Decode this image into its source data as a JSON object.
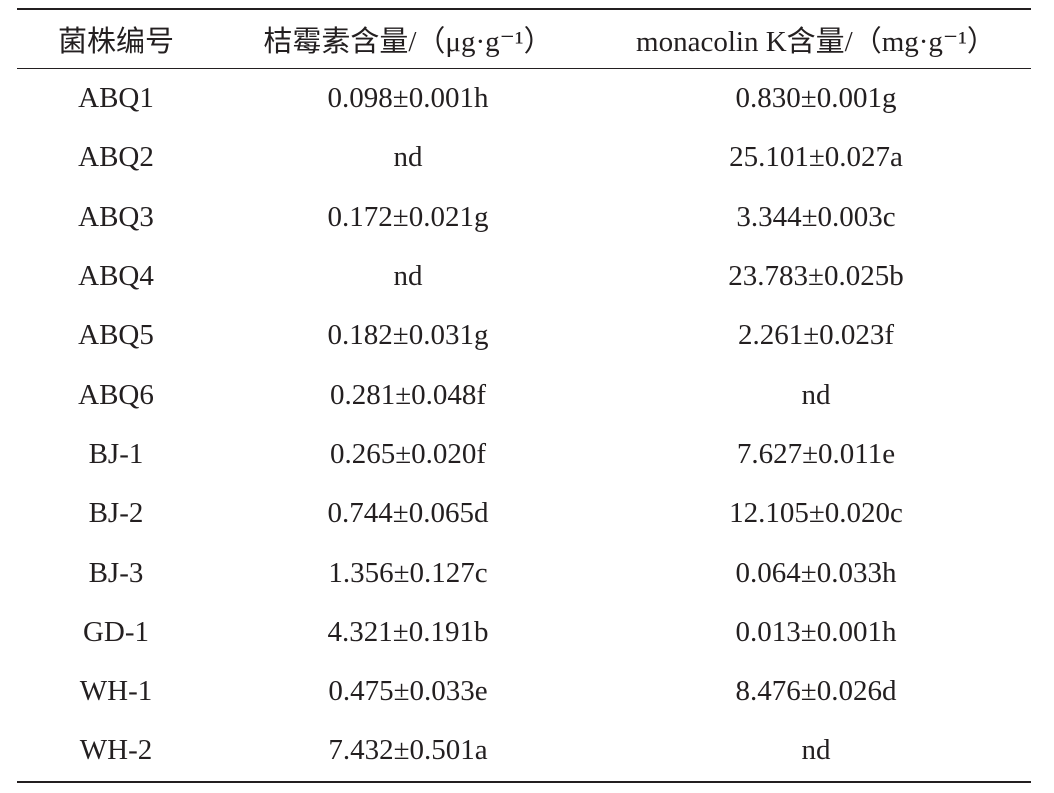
{
  "table": {
    "headers": [
      "菌株编号",
      "桔霉素含量/（μg·g⁻¹）",
      "monacolin K含量/（mg·g⁻¹）"
    ],
    "rows": [
      [
        "ABQ1",
        "0.098±0.001h",
        "0.830±0.001g"
      ],
      [
        "ABQ2",
        "nd",
        "25.101±0.027a"
      ],
      [
        "ABQ3",
        "0.172±0.021g",
        "3.344±0.003c"
      ],
      [
        "ABQ4",
        "nd",
        "23.783±0.025b"
      ],
      [
        "ABQ5",
        "0.182±0.031g",
        "2.261±0.023f"
      ],
      [
        "ABQ6",
        "0.281±0.048f",
        "nd"
      ],
      [
        "BJ-1",
        "0.265±0.020f",
        "7.627±0.011e"
      ],
      [
        "BJ-2",
        "0.744±0.065d",
        "12.105±0.020c"
      ],
      [
        "BJ-3",
        "1.356±0.127c",
        "0.064±0.033h"
      ],
      [
        "GD-1",
        "4.321±0.191b",
        "0.013±0.001h"
      ],
      [
        "WH-1",
        "0.475±0.033e",
        "8.476±0.026d"
      ],
      [
        "WH-2",
        "7.432±0.501a",
        "nd"
      ]
    ]
  }
}
